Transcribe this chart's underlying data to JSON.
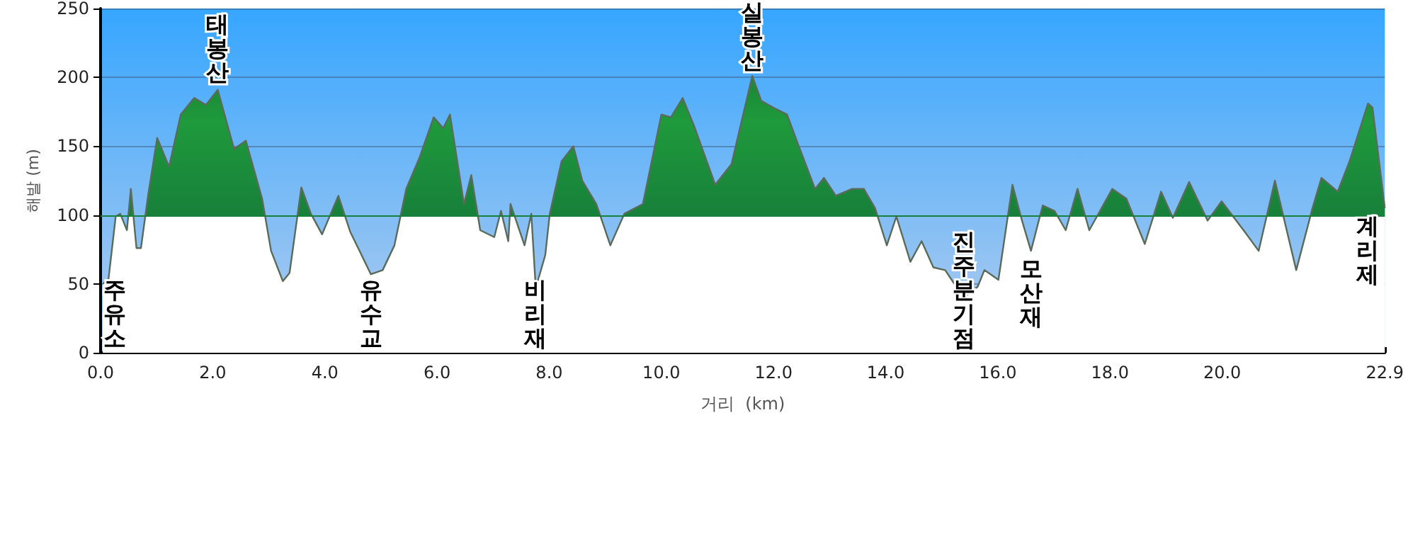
{
  "chart_data": {
    "type": "area",
    "xlabel": "거리  (km)",
    "ylabel": "해발 (m)",
    "x": [
      0.04,
      0.14,
      0.27,
      0.35,
      0.47,
      0.54,
      0.64,
      0.72,
      0.85,
      1.01,
      1.22,
      1.43,
      1.67,
      1.88,
      2.09,
      2.21,
      2.38,
      2.59,
      2.88,
      3.04,
      3.25,
      3.37,
      3.58,
      3.75,
      3.95,
      4.24,
      4.45,
      4.82,
      5.03,
      5.24,
      5.45,
      5.69,
      5.94,
      6.11,
      6.23,
      6.48,
      6.61,
      6.77,
      7.02,
      7.14,
      7.27,
      7.31,
      7.56,
      7.68,
      7.76,
      7.93,
      8.01,
      8.22,
      8.43,
      8.59,
      8.84,
      9.09,
      9.34,
      9.67,
      10.0,
      10.17,
      10.38,
      10.58,
      10.96,
      11.25,
      11.62,
      11.78,
      12.0,
      12.24,
      12.45,
      12.74,
      12.9,
      13.11,
      13.4,
      13.61,
      13.81,
      14.02,
      14.19,
      14.44,
      14.64,
      14.85,
      15.06,
      15.39,
      15.64,
      15.76,
      16.01,
      16.26,
      16.43,
      16.59,
      16.8,
      17.01,
      17.21,
      17.42,
      17.63,
      18.04,
      18.29,
      18.62,
      18.91,
      19.12,
      19.41,
      19.74,
      19.99,
      20.4,
      20.65,
      20.94,
      21.32,
      21.61,
      21.77,
      22.06,
      22.27,
      22.6,
      22.68,
      22.9
    ],
    "series": [
      {
        "color": "#1f9a3c",
        "values": [
          50,
          53,
          99,
          101,
          89,
          119,
          76,
          76,
          115,
          156,
          135,
          173,
          185,
          180,
          191,
          173,
          148,
          154,
          112,
          74,
          52,
          58,
          120,
          101,
          86,
          114,
          88,
          57,
          60,
          78,
          119,
          142,
          171,
          163,
          173,
          108,
          129,
          89,
          84,
          103,
          81,
          108,
          78,
          101,
          47,
          71,
          101,
          139,
          150,
          125,
          108,
          78,
          101,
          108,
          173,
          171,
          185,
          165,
          122,
          137,
          201,
          183,
          178,
          173,
          150,
          119,
          127,
          114,
          119,
          119,
          105,
          78,
          99,
          66,
          81,
          62,
          60,
          40,
          48,
          60,
          53,
          122,
          96,
          74,
          107,
          103,
          89,
          119,
          89,
          119,
          112,
          79,
          117,
          98,
          124,
          96,
          110,
          88,
          74,
          125,
          60,
          105,
          127,
          117,
          139,
          181,
          178,
          105
        ]
      }
    ],
    "xlim": [
      0,
      22.9
    ],
    "xticks": [
      {
        "value": 0,
        "label": "0.0"
      },
      {
        "value": 2,
        "label": "2.0"
      },
      {
        "value": 4,
        "label": "4.0"
      },
      {
        "value": 6,
        "label": "6.0"
      },
      {
        "value": 8,
        "label": "8.0"
      },
      {
        "value": 10,
        "label": "10.0"
      },
      {
        "value": 12,
        "label": "12.0"
      },
      {
        "value": 14,
        "label": "14.0"
      },
      {
        "value": 16,
        "label": "16.0"
      },
      {
        "value": 18,
        "label": "18.0"
      },
      {
        "value": 20,
        "label": "20.0"
      },
      {
        "value": 22.9,
        "label": "22.9"
      }
    ],
    "ylim": [
      0,
      250
    ],
    "yticks": [
      0,
      50,
      100,
      150,
      200,
      250
    ],
    "grid": "y",
    "marker": "none",
    "line_style": "solid",
    "ref_lines": [
      {
        "axis": "y",
        "value": 100,
        "color": "#17803a"
      }
    ],
    "annotations": [
      {
        "text": "주유소",
        "x": 0.04,
        "y": 50
      },
      {
        "text": "태봉산",
        "x": 2.09,
        "y": 191
      },
      {
        "text": "유수교",
        "x": 4.82,
        "y": 57
      },
      {
        "text": "비리재",
        "x": 7.76,
        "y": 47
      },
      {
        "text": "실봉산",
        "x": 11.62,
        "y": 201
      },
      {
        "text": "진주분기점",
        "x": 15.39,
        "y": 40
      },
      {
        "text": "모산재",
        "x": 16.59,
        "y": 74
      },
      {
        "text": "계리제",
        "x": 22.9,
        "y": 105
      }
    ]
  }
}
